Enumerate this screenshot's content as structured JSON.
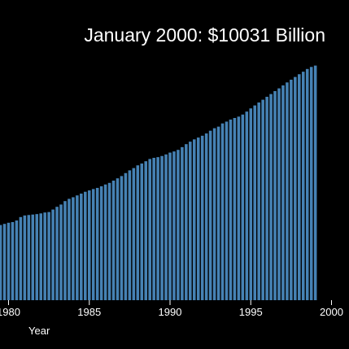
{
  "chart_data": {
    "type": "bar",
    "title": "January 2000: $10031 Billion",
    "xlabel": "Year",
    "ylabel": "",
    "x_ticks": [
      "1980",
      "1985",
      "1990",
      "1995",
      "2000"
    ],
    "x_range": [
      1979.5,
      2001.5
    ],
    "ylim": [
      0,
      12000
    ],
    "bar_period": "quarterly",
    "highlighted_x": 2000.0,
    "highlight_color": "#ffffff",
    "bar_color": "#4682b4",
    "background": "#000000",
    "series": [
      {
        "values": [
          3100,
          3150,
          3200,
          3250,
          3300,
          3350,
          3400,
          3430,
          3500,
          3650,
          3720,
          3740,
          3760,
          3780,
          3810,
          3850,
          3870,
          3980,
          4100,
          4200,
          4350,
          4450,
          4520,
          4600,
          4680,
          4760,
          4820,
          4880,
          4930,
          5000,
          5080,
          5150,
          5250,
          5350,
          5450,
          5580,
          5700,
          5800,
          5920,
          6000,
          6100,
          6200,
          6250,
          6280,
          6330,
          6400,
          6480,
          6530,
          6600,
          6720,
          6850,
          6960,
          7060,
          7140,
          7220,
          7320,
          7440,
          7550,
          7620,
          7760,
          7840,
          7930,
          8000,
          8060,
          8150,
          8280,
          8420,
          8550,
          8680,
          8800,
          8930,
          9050,
          9180,
          9300,
          9430,
          9560,
          9680,
          9800,
          9920,
          10031,
          10150,
          10240,
          10300
        ]
      }
    ]
  }
}
